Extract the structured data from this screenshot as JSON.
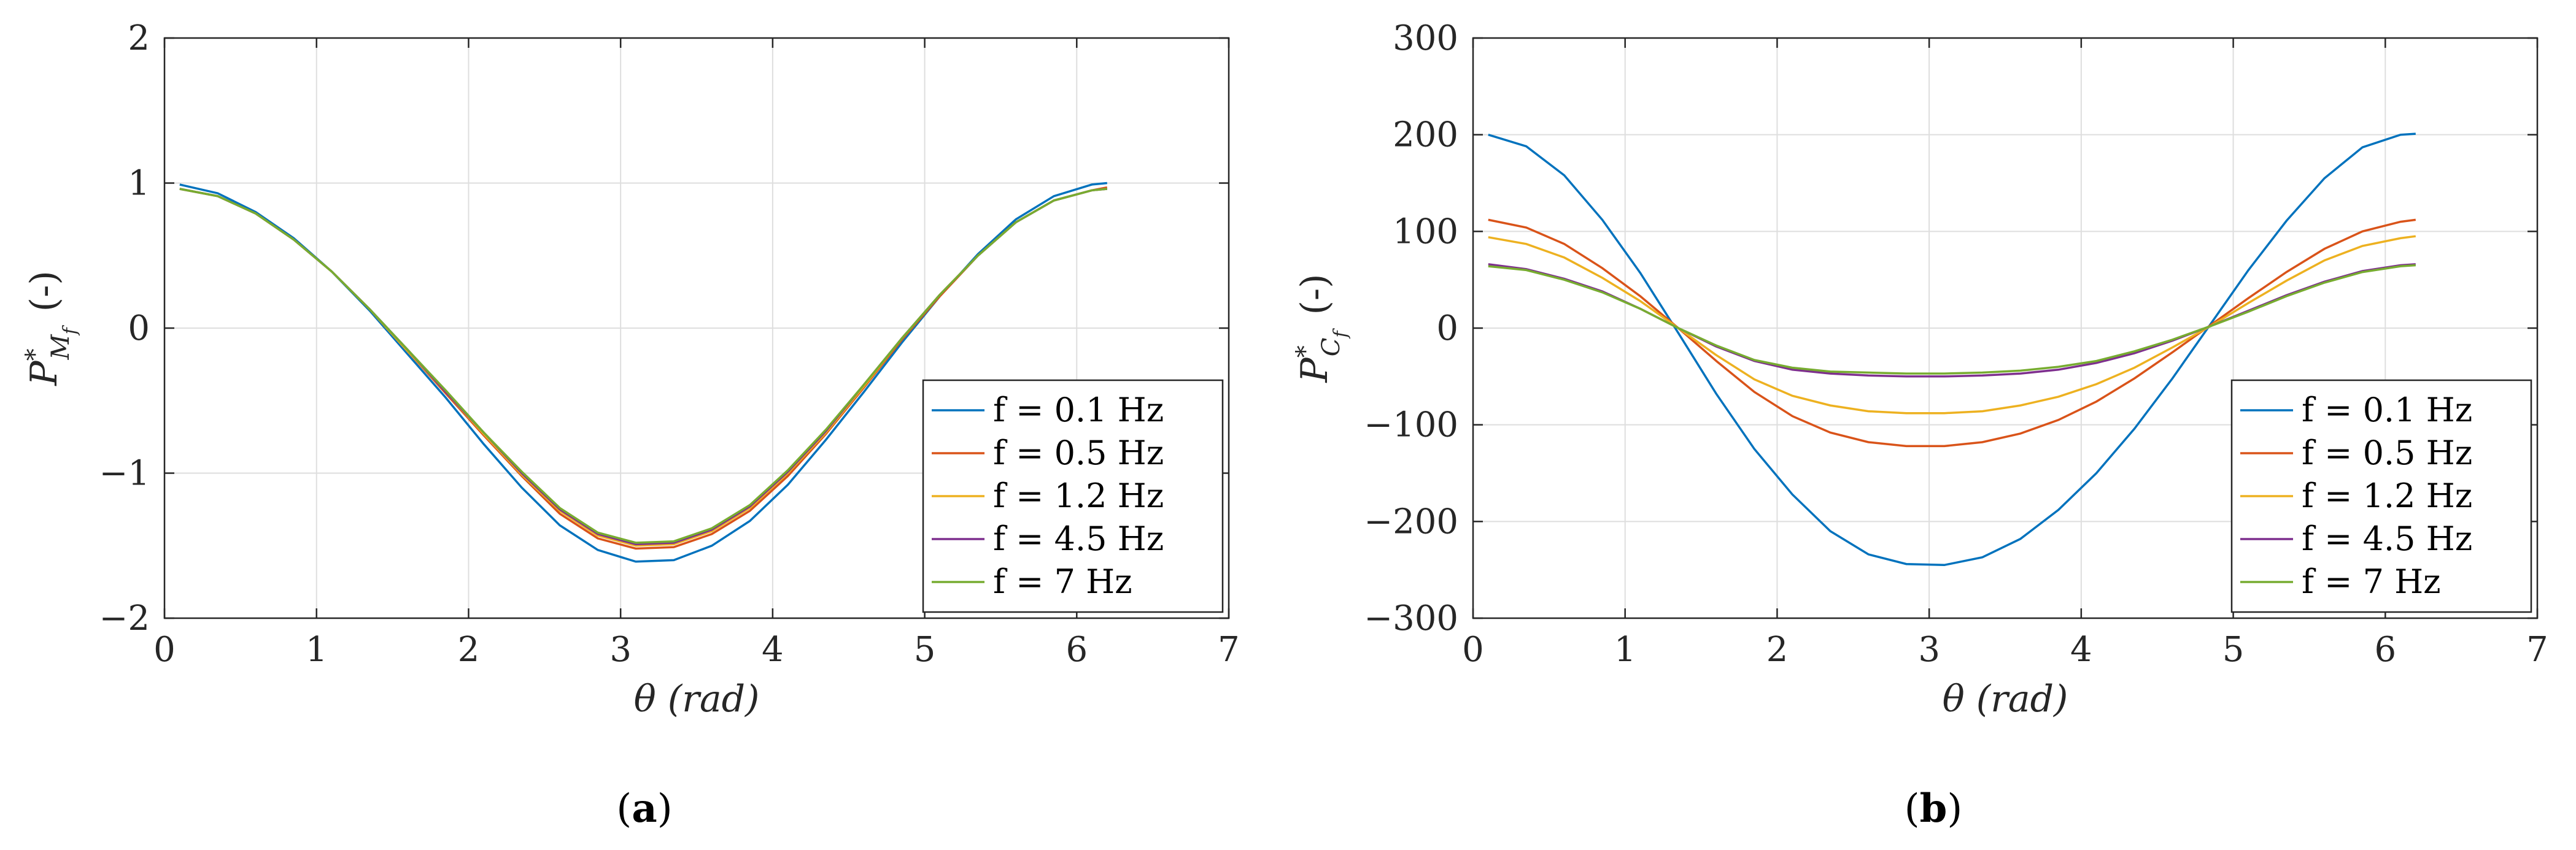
{
  "chart_data": [
    {
      "type": "line",
      "panel_id": "a",
      "caption": "(a)",
      "ylabel_main": "P",
      "ylabel_sup": "*",
      "ylabel_sub": "M",
      "ylabel_subsub": "f",
      "ylabel_unit": "(-)",
      "xlabel": "θ (rad)",
      "xlim": [
        0,
        7
      ],
      "ylim": [
        -2,
        2
      ],
      "xticks": [
        "0",
        "1",
        "2",
        "3",
        "4",
        "5",
        "6",
        "7"
      ],
      "yticks": [
        "2",
        "1",
        "0",
        "−1",
        "−2"
      ],
      "ytick_values": [
        2,
        1,
        0,
        -1,
        -2
      ],
      "grid": true,
      "legend_position": "lower-right",
      "x": [
        0.1,
        0.35,
        0.6,
        0.85,
        1.1,
        1.35,
        1.6,
        1.85,
        2.1,
        2.35,
        2.6,
        2.85,
        3.1,
        3.35,
        3.6,
        3.85,
        4.1,
        4.35,
        4.6,
        4.85,
        5.1,
        5.35,
        5.6,
        5.85,
        6.1,
        6.2
      ],
      "series": [
        {
          "name": "f = 0.1 Hz",
          "color": "#0072BD",
          "values": [
            0.99,
            0.93,
            0.8,
            0.62,
            0.39,
            0.12,
            -0.18,
            -0.48,
            -0.8,
            -1.1,
            -1.36,
            -1.53,
            -1.61,
            -1.6,
            -1.5,
            -1.33,
            -1.08,
            -0.77,
            -0.44,
            -0.1,
            0.22,
            0.51,
            0.75,
            0.91,
            0.99,
            1.0
          ]
        },
        {
          "name": "f = 0.5 Hz",
          "color": "#D95319",
          "values": [
            0.96,
            0.91,
            0.79,
            0.61,
            0.39,
            0.13,
            -0.16,
            -0.45,
            -0.74,
            -1.02,
            -1.28,
            -1.45,
            -1.52,
            -1.51,
            -1.42,
            -1.26,
            -1.02,
            -0.73,
            -0.41,
            -0.08,
            0.22,
            0.5,
            0.73,
            0.88,
            0.95,
            0.97
          ]
        },
        {
          "name": "f = 1.2 Hz",
          "color": "#EDB120",
          "values": [
            0.96,
            0.91,
            0.79,
            0.61,
            0.39,
            0.13,
            -0.16,
            -0.44,
            -0.73,
            -1.01,
            -1.26,
            -1.43,
            -1.5,
            -1.49,
            -1.4,
            -1.24,
            -1.0,
            -0.72,
            -0.4,
            -0.07,
            0.23,
            0.5,
            0.73,
            0.88,
            0.95,
            0.96
          ]
        },
        {
          "name": "f = 4.5 Hz",
          "color": "#7E2F8E",
          "values": [
            0.96,
            0.91,
            0.79,
            0.61,
            0.39,
            0.13,
            -0.15,
            -0.44,
            -0.72,
            -1.0,
            -1.25,
            -1.42,
            -1.49,
            -1.48,
            -1.39,
            -1.23,
            -0.99,
            -0.71,
            -0.39,
            -0.07,
            0.23,
            0.5,
            0.73,
            0.88,
            0.95,
            0.96
          ]
        },
        {
          "name": "f = 7 Hz",
          "color": "#77AC30",
          "values": [
            0.96,
            0.91,
            0.79,
            0.61,
            0.39,
            0.13,
            -0.15,
            -0.43,
            -0.72,
            -0.99,
            -1.24,
            -1.41,
            -1.48,
            -1.47,
            -1.38,
            -1.22,
            -0.98,
            -0.7,
            -0.39,
            -0.07,
            0.23,
            0.5,
            0.73,
            0.88,
            0.95,
            0.96
          ]
        }
      ]
    },
    {
      "type": "line",
      "panel_id": "b",
      "caption": "(b)",
      "ylabel_main": "P",
      "ylabel_sup": "*",
      "ylabel_sub": "C",
      "ylabel_subsub": "f",
      "ylabel_unit": "(-)",
      "xlabel": "θ (rad)",
      "xlim": [
        0,
        7
      ],
      "ylim": [
        -300,
        300
      ],
      "xticks": [
        "0",
        "1",
        "2",
        "3",
        "4",
        "5",
        "6",
        "7"
      ],
      "yticks": [
        "300",
        "200",
        "100",
        "0",
        "−100",
        "−200",
        "−300"
      ],
      "ytick_values": [
        300,
        200,
        100,
        0,
        -100,
        -200,
        -300
      ],
      "grid": true,
      "legend_position": "lower-right",
      "x": [
        0.1,
        0.35,
        0.6,
        0.85,
        1.1,
        1.35,
        1.6,
        1.85,
        2.1,
        2.35,
        2.6,
        2.85,
        3.1,
        3.35,
        3.6,
        3.85,
        4.1,
        4.35,
        4.6,
        4.85,
        5.1,
        5.35,
        5.6,
        5.85,
        6.1,
        6.2
      ],
      "series": [
        {
          "name": "f = 0.1 Hz",
          "color": "#0072BD",
          "values": [
            200,
            188,
            158,
            112,
            57,
            -5,
            -68,
            -125,
            -172,
            -210,
            -234,
            -244,
            -245,
            -237,
            -218,
            -188,
            -150,
            -104,
            -52,
            4,
            60,
            111,
            155,
            187,
            200,
            201
          ]
        },
        {
          "name": "f = 0.5 Hz",
          "color": "#D95319",
          "values": [
            112,
            104,
            87,
            62,
            33,
            0,
            -34,
            -66,
            -91,
            -108,
            -118,
            -122,
            -122,
            -118,
            -109,
            -95,
            -76,
            -52,
            -25,
            3,
            31,
            58,
            82,
            100,
            110,
            112
          ]
        },
        {
          "name": "f = 1.2 Hz",
          "color": "#EDB120",
          "values": [
            94,
            87,
            73,
            52,
            28,
            0,
            -28,
            -53,
            -70,
            -80,
            -86,
            -88,
            -88,
            -86,
            -80,
            -71,
            -58,
            -41,
            -20,
            2,
            26,
            49,
            70,
            85,
            93,
            95
          ]
        },
        {
          "name": "f = 4.5 Hz",
          "color": "#7E2F8E",
          "values": [
            66,
            61,
            51,
            38,
            20,
            0,
            -19,
            -34,
            -43,
            -47,
            -49,
            -50,
            -50,
            -49,
            -47,
            -43,
            -36,
            -26,
            -13,
            2,
            18,
            34,
            48,
            59,
            65,
            66
          ]
        },
        {
          "name": "f = 7 Hz",
          "color": "#77AC30",
          "values": [
            64,
            60,
            50,
            37,
            20,
            0,
            -18,
            -33,
            -41,
            -45,
            -46,
            -47,
            -47,
            -46,
            -44,
            -40,
            -34,
            -24,
            -12,
            2,
            17,
            33,
            47,
            58,
            64,
            65
          ]
        }
      ]
    }
  ]
}
